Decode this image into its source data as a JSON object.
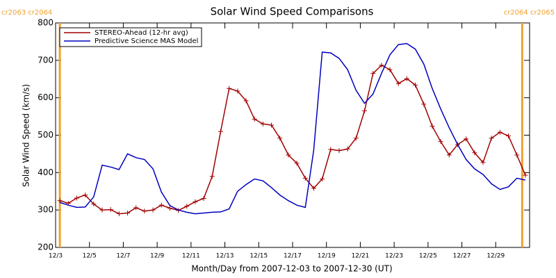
{
  "chart_data": {
    "type": "line",
    "title": "Solar Wind Speed Comparisons",
    "xlabel": "Month/Day from 2007-12-03 to 2007-12-30 (UT)",
    "ylabel": "Solar Wind Speed (km/s)",
    "x": [
      "2007-12-03T06:00",
      "2007-12-03T18:00",
      "2007-12-04T06:00",
      "2007-12-04T18:00",
      "2007-12-05T06:00",
      "2007-12-05T18:00",
      "2007-12-06T06:00",
      "2007-12-06T18:00",
      "2007-12-07T06:00",
      "2007-12-07T18:00",
      "2007-12-08T06:00",
      "2007-12-08T18:00",
      "2007-12-09T06:00",
      "2007-12-09T18:00",
      "2007-12-10T06:00",
      "2007-12-10T18:00",
      "2007-12-11T06:00",
      "2007-12-11T18:00",
      "2007-12-12T06:00",
      "2007-12-12T18:00",
      "2007-12-13T06:00",
      "2007-12-13T18:00",
      "2007-12-14T06:00",
      "2007-12-14T18:00",
      "2007-12-15T06:00",
      "2007-12-15T18:00",
      "2007-12-16T06:00",
      "2007-12-16T18:00",
      "2007-12-17T06:00",
      "2007-12-17T18:00",
      "2007-12-18T06:00",
      "2007-12-18T18:00",
      "2007-12-19T06:00",
      "2007-12-19T18:00",
      "2007-12-20T06:00",
      "2007-12-20T18:00",
      "2007-12-21T06:00",
      "2007-12-21T18:00",
      "2007-12-22T06:00",
      "2007-12-22T18:00",
      "2007-12-23T06:00",
      "2007-12-23T18:00",
      "2007-12-24T06:00",
      "2007-12-24T18:00",
      "2007-12-25T06:00",
      "2007-12-25T18:00",
      "2007-12-26T06:00",
      "2007-12-26T18:00",
      "2007-12-27T06:00",
      "2007-12-27T18:00",
      "2007-12-28T06:00",
      "2007-12-28T18:00",
      "2007-12-29T06:00",
      "2007-12-29T18:00",
      "2007-12-30T06:00",
      "2007-12-30T18:00"
    ],
    "series": [
      {
        "name": "STEREO-Ahead (12-hr avg)",
        "color": "#a00000",
        "markers": true,
        "values": [
          325,
          318,
          332,
          340,
          316,
          300,
          301,
          290,
          292,
          306,
          297,
          300,
          313,
          305,
          299,
          310,
          322,
          331,
          390,
          510,
          625,
          618,
          592,
          543,
          530,
          527,
          492,
          447,
          425,
          385,
          358,
          383,
          462,
          459,
          463,
          492,
          565,
          665,
          687,
          675,
          638,
          651,
          634,
          583,
          524,
          483,
          447,
          475,
          490,
          453,
          427,
          492,
          508,
          498,
          447,
          393
        ]
      },
      {
        "name": "Predictive Science MAS Model",
        "color": "#0000c0",
        "markers": false,
        "values": [
          320,
          313,
          307,
          308,
          335,
          420,
          415,
          408,
          450,
          440,
          435,
          410,
          348,
          312,
          300,
          294,
          290,
          292,
          294,
          295,
          303,
          350,
          368,
          383,
          378,
          360,
          340,
          325,
          313,
          307,
          460,
          722,
          720,
          705,
          675,
          620,
          585,
          610,
          665,
          715,
          742,
          745,
          730,
          690,
          625,
          570,
          520,
          475,
          435,
          410,
          395,
          370,
          355,
          362,
          385,
          380
        ]
      }
    ],
    "xlim": [
      "2007-12-03T00:00",
      "2007-12-31T00:00"
    ],
    "xticks": [
      {
        "value": "2007-12-03T00:00",
        "label": "12/3"
      },
      {
        "value": "2007-12-05T00:00",
        "label": "12/5"
      },
      {
        "value": "2007-12-07T00:00",
        "label": "12/7"
      },
      {
        "value": "2007-12-09T00:00",
        "label": "12/9"
      },
      {
        "value": "2007-12-11T00:00",
        "label": "12/11"
      },
      {
        "value": "2007-12-13T00:00",
        "label": "12/13"
      },
      {
        "value": "2007-12-15T00:00",
        "label": "12/15"
      },
      {
        "value": "2007-12-17T00:00",
        "label": "12/17"
      },
      {
        "value": "2007-12-19T00:00",
        "label": "12/19"
      },
      {
        "value": "2007-12-21T00:00",
        "label": "12/21"
      },
      {
        "value": "2007-12-23T00:00",
        "label": "12/23"
      },
      {
        "value": "2007-12-25T00:00",
        "label": "12/25"
      },
      {
        "value": "2007-12-27T00:00",
        "label": "12/27"
      },
      {
        "value": "2007-12-29T00:00",
        "label": "12/29"
      }
    ],
    "ylim": [
      200,
      800
    ],
    "yticks": [
      200,
      300,
      400,
      500,
      600,
      700,
      800
    ],
    "legend": "upper left",
    "annotations": [
      {
        "text": "cr2063 cr2064",
        "x": "2007-12-03T06:00",
        "color": "#f0a030"
      },
      {
        "text": "cr2064 cr2065",
        "x": "2007-12-30T13:30",
        "color": "#f0a030"
      }
    ]
  }
}
